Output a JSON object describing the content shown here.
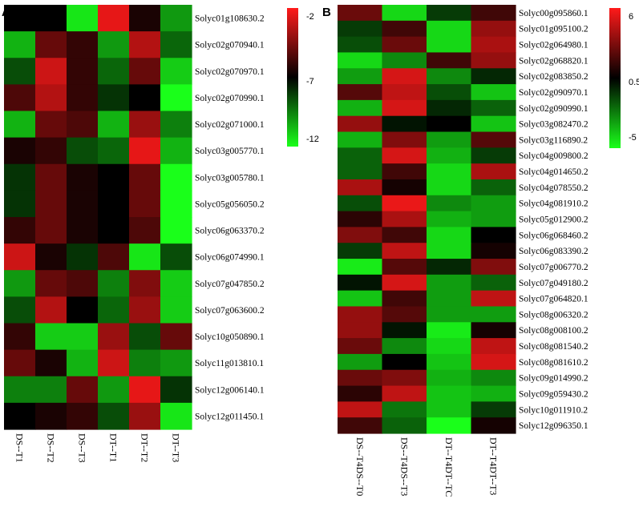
{
  "chart_data": [
    {
      "type": "heatmap",
      "panel": "A",
      "rows": [
        "Solyc01g108630.2",
        "Solyc02g070940.1",
        "Solyc02g070970.1",
        "Solyc02g070990.1",
        "Solyc02g071000.1",
        "Solyc03g005770.1",
        "Solyc03g005780.1",
        "Solyc05g056050.2",
        "Solyc06g063370.2",
        "Solyc06g074990.1",
        "Solyc07g047850.2",
        "Solyc07g063600.2",
        "Solyc10g050890.1",
        "Solyc11g013810.1",
        "Solyc12g006140.1",
        "Solyc12g011450.1"
      ],
      "columns": [
        "DS--T1",
        "DS--T2",
        "DS--T3",
        "DT--T1",
        "DT--T2",
        "DT--T3"
      ],
      "values": [
        [
          -7.0,
          -7.0,
          -11.5,
          -2.5,
          -6.5,
          -10.0
        ],
        [
          -10.5,
          -5.0,
          -6.0,
          -10.0,
          -3.5,
          -9.0
        ],
        [
          -8.5,
          -3.0,
          -6.0,
          -9.0,
          -5.0,
          -11.0
        ],
        [
          -5.5,
          -3.5,
          -6.0,
          -8.0,
          -7.0,
          -12.0
        ],
        [
          -10.5,
          -5.0,
          -5.5,
          -10.5,
          -4.0,
          -9.5
        ],
        [
          -6.5,
          -6.0,
          -8.5,
          -9.0,
          -2.5,
          -10.5
        ],
        [
          -8.0,
          -5.0,
          -6.5,
          -7.0,
          -5.0,
          -12.0
        ],
        [
          -8.0,
          -5.0,
          -6.5,
          -7.0,
          -5.0,
          -12.0
        ],
        [
          -6.0,
          -5.0,
          -6.5,
          -7.0,
          -5.5,
          -12.5
        ],
        [
          -3.0,
          -6.5,
          -8.0,
          -5.5,
          -11.5,
          -8.5
        ],
        [
          -10.0,
          -5.0,
          -5.5,
          -9.5,
          -4.5,
          -11.0
        ],
        [
          -8.5,
          -3.5,
          -7.0,
          -9.0,
          -4.0,
          -11.0
        ],
        [
          -6.0,
          -11.0,
          -11.0,
          -4.0,
          -8.5,
          -5.0
        ],
        [
          -5.0,
          -6.5,
          -10.5,
          -3.0,
          -9.5,
          -10.0
        ],
        [
          -9.5,
          -9.5,
          -5.0,
          -10.0,
          -2.5,
          -8.0
        ],
        [
          -7.0,
          -6.5,
          -6.0,
          -8.5,
          -4.0,
          -11.5
        ]
      ],
      "scale": {
        "min": -12,
        "mid": -7,
        "max": -2,
        "ticks": [
          "-2",
          "-7",
          "-12"
        ]
      },
      "colors": {
        "high": "#ff1a1a",
        "mid": "#000000",
        "low": "#1aff1a"
      }
    },
    {
      "type": "heatmap",
      "panel": "B",
      "rows": [
        "Solyc00g095860.1",
        "Solyc01g095100.2",
        "Solyc02g064980.1",
        "Solyc02g068820.1",
        "Solyc02g083850.2",
        "Solyc02g090970.1",
        "Solyc02g090990.1",
        "Solyc03g082470.2",
        "Solyc03g116890.2",
        "Solyc04g009800.2",
        "Solyc04g014650.2",
        "Solyc04g078550.2",
        "Solyc04g081910.2",
        "Solyc05g012900.2",
        "Solyc06g068460.2",
        "Solyc06g083390.2",
        "Solyc07g006770.2",
        "Solyc07g049180.2",
        "Solyc07g064820.1",
        "Solyc08g006320.2",
        "Solyc08g008100.2",
        "Solyc08g081540.2",
        "Solyc08g081610.2",
        "Solyc09g014990.2",
        "Solyc09g059430.2",
        "Solyc10g011910.2",
        "Solyc12g096350.1"
      ],
      "columns": [
        "DS--T4DS--T0",
        "DS--T4DS--T3",
        "DT--T4DT--TC",
        "DT--T4DT--T3"
      ],
      "values": [
        [
          3.0,
          -5.0,
          -1.0,
          2.0
        ],
        [
          -1.0,
          2.0,
          -5.0,
          4.0
        ],
        [
          -1.5,
          3.0,
          -5.0,
          4.5
        ],
        [
          -5.0,
          -3.0,
          2.0,
          4.0
        ],
        [
          -3.5,
          5.5,
          -3.0,
          -0.5
        ],
        [
          2.5,
          5.0,
          -1.5,
          -4.5
        ],
        [
          -4.0,
          5.5,
          -0.5,
          -2.0
        ],
        [
          4.0,
          0.0,
          0.5,
          -4.5
        ],
        [
          -4.0,
          3.5,
          -3.5,
          2.5
        ],
        [
          -2.0,
          5.5,
          -4.0,
          -1.0
        ],
        [
          -2.0,
          2.0,
          -5.0,
          4.5
        ],
        [
          4.5,
          1.0,
          -5.0,
          -2.0
        ],
        [
          -1.5,
          6.0,
          -3.0,
          -3.5
        ],
        [
          1.5,
          4.5,
          -4.0,
          -3.5
        ],
        [
          3.5,
          2.0,
          -5.0,
          0.5
        ],
        [
          -1.0,
          5.0,
          -5.0,
          1.0
        ],
        [
          -5.5,
          2.5,
          -0.5,
          3.5
        ],
        [
          0.0,
          5.5,
          -3.5,
          -2.0
        ],
        [
          -4.5,
          2.0,
          -3.5,
          5.0
        ],
        [
          4.0,
          2.5,
          -3.5,
          -3.5
        ],
        [
          4.0,
          0.0,
          -5.5,
          1.0
        ],
        [
          3.0,
          -3.0,
          -5.0,
          5.0
        ],
        [
          -3.5,
          0.5,
          -4.5,
          5.5
        ],
        [
          3.0,
          3.5,
          -4.0,
          -3.0
        ],
        [
          1.5,
          5.0,
          -4.5,
          -4.0
        ],
        [
          5.0,
          -2.5,
          -4.5,
          -1.0
        ],
        [
          2.0,
          -2.0,
          -6.0,
          1.0
        ]
      ],
      "scale": {
        "min": -6,
        "mid": 0.5,
        "max": 6.5,
        "ticks": [
          "6",
          "0.5",
          "-5"
        ]
      },
      "colors": {
        "high": "#ff1a1a",
        "mid": "#000000",
        "low": "#1aff1a"
      }
    }
  ]
}
